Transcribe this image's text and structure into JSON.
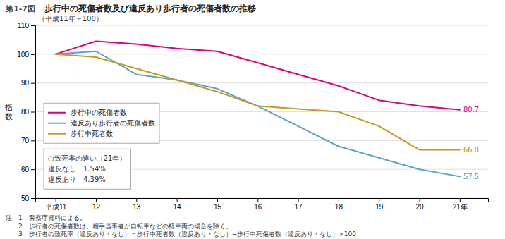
{
  "chart_data": {
    "type": "line",
    "figure_label": "第1-7図",
    "title": "歩行中の死傷者数及び違反あり歩行者の死傷者数の推移",
    "subtitle": "（平成11年＝100）",
    "y_label": "指\n数",
    "x": [
      11,
      12,
      13,
      14,
      15,
      16,
      17,
      18,
      19,
      20,
      21
    ],
    "xlim": [
      10.5,
      21.7
    ],
    "xticks": [
      {
        "value": 11,
        "label": "平成11"
      },
      12,
      13,
      14,
      15,
      16,
      17,
      18,
      19,
      20,
      {
        "value": 21,
        "label": "21年"
      }
    ],
    "ylim": [
      50,
      110
    ],
    "yticks": [
      50,
      60,
      70,
      80,
      90,
      100,
      110
    ],
    "grid": true,
    "legend": "upper left",
    "series": [
      {
        "name": "歩行中の死傷者数",
        "color": "#e0007f",
        "values": [
          100.0,
          104.5,
          103.5,
          102.0,
          101.0,
          97.0,
          93.0,
          89.0,
          84.0,
          82.0,
          80.7
        ],
        "end_label": "80.7"
      },
      {
        "name": "違反あり歩行者の死傷者数",
        "color": "#5ba3c9",
        "values": [
          100.0,
          101.0,
          93.0,
          91.0,
          88.0,
          82.0,
          75.0,
          68.0,
          64.0,
          60.0,
          57.5
        ],
        "end_label": "57.5"
      },
      {
        "name": "歩行中死者数",
        "color": "#c89820",
        "values": [
          100.0,
          99.0,
          95.0,
          91.0,
          87.0,
          82.0,
          81.0,
          80.0,
          75.0,
          66.8,
          66.8
        ],
        "end_label": "66.8"
      }
    ],
    "annotations": [
      "○致死率の違い（21年）",
      "違反なし　1.54%",
      "違反あり　4.39%"
    ],
    "notes": [
      "注　1　警察庁資料による。",
      "　　2　歩行者の死傷者数は、相手当事者が自転車などの軽車両の場合を除く。",
      "　　3　歩行者の致死率（違反あり・なし）＝歩行中死者数（違反あり・なし）÷歩行中死傷者数（違反あり・なし）×100"
    ]
  }
}
